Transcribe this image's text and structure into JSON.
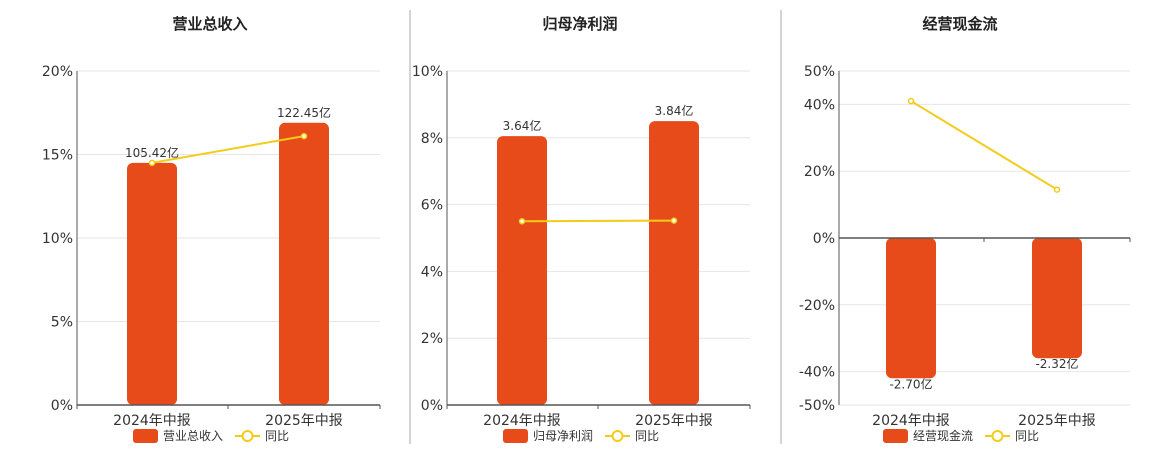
{
  "colors": {
    "bar": "#E84B1A",
    "line": "#F2CC1B",
    "grid": "#E6E6E6",
    "axis": "#555555",
    "divider": "#AAAAAA"
  },
  "legend": {
    "line_label": "同比"
  },
  "chart_data": [
    {
      "type": "bar",
      "title": "营业总收入",
      "categories": [
        "2024年中报",
        "2025年中报"
      ],
      "series": [
        {
          "name": "营业总收入",
          "type": "bar",
          "values": [
            14.5,
            16.9
          ],
          "labels": [
            "105.42亿",
            "122.45亿"
          ]
        },
        {
          "name": "同比",
          "type": "line",
          "values": [
            14.5,
            16.1
          ]
        }
      ],
      "ylim": [
        0,
        20
      ],
      "yticks": [
        0,
        5,
        10,
        15,
        20
      ],
      "ytick_labels": [
        "0%",
        "5%",
        "10%",
        "15%",
        "20%"
      ],
      "grid": true,
      "legend_position": "bottom"
    },
    {
      "type": "bar",
      "title": "归母净利润",
      "categories": [
        "2024年中报",
        "2025年中报"
      ],
      "series": [
        {
          "name": "归母净利润",
          "type": "bar",
          "values": [
            8.05,
            8.5
          ],
          "labels": [
            "3.64亿",
            "3.84亿"
          ]
        },
        {
          "name": "同比",
          "type": "line",
          "values": [
            5.5,
            5.52
          ]
        }
      ],
      "ylim": [
        0,
        10
      ],
      "yticks": [
        0,
        2,
        4,
        6,
        8,
        10
      ],
      "ytick_labels": [
        "0%",
        "2%",
        "4%",
        "6%",
        "8%",
        "10%"
      ],
      "grid": true,
      "legend_position": "bottom"
    },
    {
      "type": "bar",
      "title": "经营现金流",
      "categories": [
        "2024年中报",
        "2025年中报"
      ],
      "series": [
        {
          "name": "经营现金流",
          "type": "bar",
          "values": [
            -42,
            -36
          ],
          "labels": [
            "-2.70亿",
            "-2.32亿"
          ]
        },
        {
          "name": "同比",
          "type": "line",
          "values": [
            41,
            14.5
          ]
        }
      ],
      "ylim": [
        -50,
        50
      ],
      "yticks": [
        -50,
        -40,
        -20,
        0,
        20,
        40,
        50
      ],
      "ytick_labels": [
        "-50%",
        "-40%",
        "-20%",
        "0%",
        "20%",
        "40%",
        "50%"
      ],
      "grid": true,
      "legend_position": "bottom"
    }
  ]
}
